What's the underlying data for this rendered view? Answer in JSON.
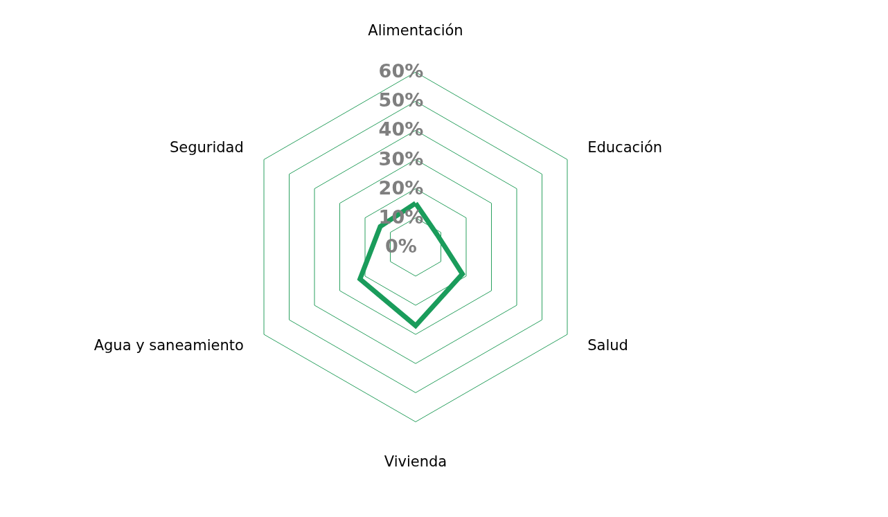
{
  "chart_data": {
    "type": "radar",
    "categories": [
      "Alimentación",
      "Educación",
      "Salud",
      "Vivienda",
      "Agua y saneamiento",
      "Seguridad"
    ],
    "series": [
      {
        "color": "#1a9c5b",
        "values": [
          15,
          8.5,
          18.5,
          27,
          22,
          14
        ]
      }
    ],
    "ylim": [
      0,
      60
    ],
    "yticks": [
      {
        "value": 0,
        "label": "0%"
      },
      {
        "value": 10,
        "label": "10%"
      },
      {
        "value": 20,
        "label": "20%"
      },
      {
        "value": 30,
        "label": "30%"
      },
      {
        "value": 40,
        "label": "40%"
      },
      {
        "value": 50,
        "label": "50%"
      },
      {
        "value": 60,
        "label": "60%"
      }
    ],
    "grid": true
  }
}
